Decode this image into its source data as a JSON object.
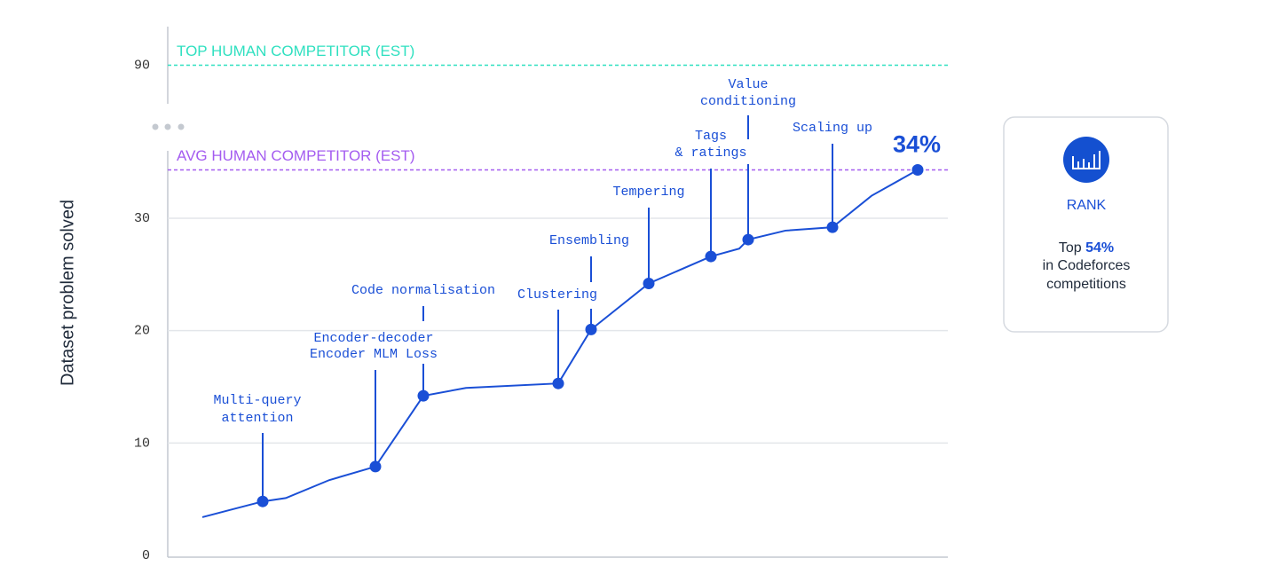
{
  "chart_data": {
    "type": "line",
    "y_label": "Dataset problem solved",
    "categories": [
      null,
      null,
      null,
      null,
      null,
      null,
      null,
      null,
      null,
      null,
      null,
      null,
      null,
      null,
      null,
      null,
      null
    ],
    "series": [
      {
        "color": "#1a4fd6",
        "values": [
          3.4,
          4.8,
          5.1,
          6.7,
          7.9,
          14.2,
          14.9,
          15.3,
          20.1,
          24.2,
          26.6,
          27.3,
          28.1,
          28.9,
          29.2,
          32.0,
          34.3
        ],
        "value_labels": [
          null,
          null,
          null,
          null,
          null,
          null,
          null,
          null,
          null,
          null,
          null,
          null,
          null,
          null,
          null,
          null,
          "34%"
        ],
        "point_labels": [
          null,
          [
            "Multi-query",
            "attention"
          ],
          null,
          null,
          [
            "Encoder-decoder",
            "Encoder MLM Loss"
          ],
          [
            "Code normalisation"
          ],
          null,
          [
            "Clustering"
          ],
          [
            "Ensembling"
          ],
          [
            "Tempering"
          ],
          [
            "Tags",
            "& ratings"
          ],
          null,
          [
            "Value",
            "conditioning"
          ],
          null,
          [
            "Scaling up"
          ],
          null,
          null
        ]
      }
    ],
    "ylim": [
      0,
      36
    ],
    "yticks": [
      0,
      10,
      20,
      30
    ],
    "upper_ylim": [
      88,
      92
    ],
    "upper_yticks": [
      90
    ],
    "grid": true,
    "reference_lines": [
      {
        "label": "TOP HUMAN COMPETITOR (EST)",
        "value": 90,
        "color": "#2fe0c0",
        "axis": "upper"
      },
      {
        "label": "AVG HUMAN COMPETITOR (EST)",
        "value": 34.3,
        "color": "#a45cf0",
        "axis": "lower"
      }
    ]
  },
  "rank_card": {
    "title": "RANK",
    "prefix": "Top",
    "highlight": "54%",
    "lines": [
      "in Codeforces",
      "competitions"
    ]
  }
}
